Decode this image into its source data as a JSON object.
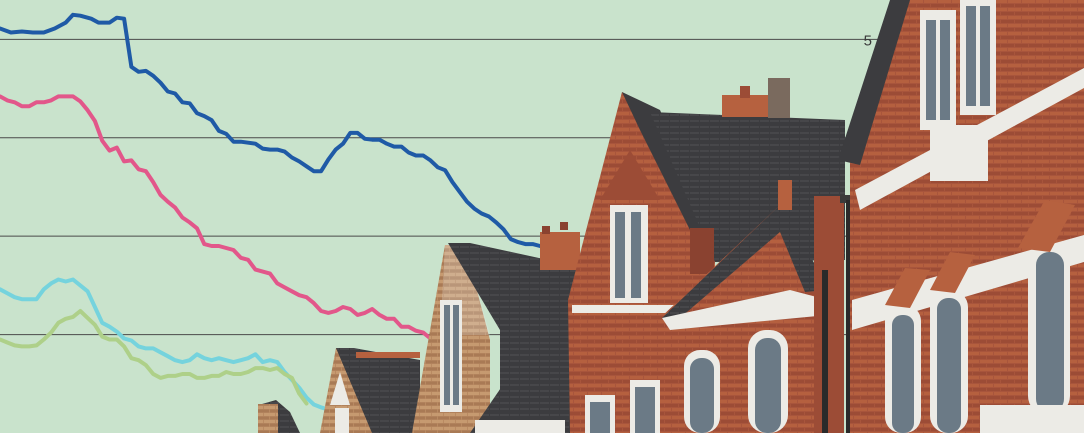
{
  "chart_data": {
    "type": "line",
    "title": "",
    "xlabel": "",
    "ylabel": "",
    "ylim": [
      1,
      5.4
    ],
    "grid": true,
    "y_ticks": [
      2,
      3,
      4,
      5
    ],
    "y_tick_labels": [
      {
        "value": 5,
        "label": "5"
      }
    ],
    "series": [
      {
        "color": "#1f5aa6",
        "points": [
          [
            0,
            5.11
          ],
          [
            3,
            5.07
          ],
          [
            6,
            5.08
          ],
          [
            9,
            5.07
          ],
          [
            12,
            5.07
          ],
          [
            15,
            5.11
          ],
          [
            18,
            5.17
          ],
          [
            20,
            5.25
          ],
          [
            22,
            5.24
          ],
          [
            25,
            5.21
          ],
          [
            27,
            5.17
          ],
          [
            30,
            5.17
          ],
          [
            32,
            5.22
          ],
          [
            34,
            5.21
          ],
          [
            36,
            4.72
          ],
          [
            38,
            4.67
          ],
          [
            40,
            4.68
          ],
          [
            42,
            4.63
          ],
          [
            44,
            4.56
          ],
          [
            46,
            4.47
          ],
          [
            48,
            4.45
          ],
          [
            50,
            4.36
          ],
          [
            52,
            4.35
          ],
          [
            54,
            4.25
          ],
          [
            56,
            4.22
          ],
          [
            58,
            4.18
          ],
          [
            60,
            4.07
          ],
          [
            62,
            4.04
          ],
          [
            64,
            3.96
          ],
          [
            66,
            3.96
          ],
          [
            68,
            3.95
          ],
          [
            70,
            3.94
          ],
          [
            72,
            3.89
          ],
          [
            74,
            3.88
          ],
          [
            76,
            3.88
          ],
          [
            78,
            3.86
          ],
          [
            80,
            3.8
          ],
          [
            82,
            3.76
          ],
          [
            84,
            3.71
          ],
          [
            86,
            3.66
          ],
          [
            88,
            3.66
          ],
          [
            90,
            3.78
          ],
          [
            92,
            3.88
          ],
          [
            94,
            3.94
          ],
          [
            96,
            4.05
          ],
          [
            98,
            4.05
          ],
          [
            100,
            3.99
          ],
          [
            102,
            3.98
          ],
          [
            104,
            3.98
          ],
          [
            106,
            3.94
          ],
          [
            108,
            3.91
          ],
          [
            110,
            3.91
          ],
          [
            112,
            3.85
          ],
          [
            114,
            3.82
          ],
          [
            116,
            3.82
          ],
          [
            118,
            3.77
          ],
          [
            120,
            3.7
          ],
          [
            122,
            3.67
          ],
          [
            124,
            3.55
          ],
          [
            126,
            3.45
          ],
          [
            128,
            3.35
          ],
          [
            130,
            3.28
          ],
          [
            132,
            3.23
          ],
          [
            134,
            3.2
          ],
          [
            136,
            3.14
          ],
          [
            138,
            3.07
          ],
          [
            140,
            2.97
          ],
          [
            142,
            2.94
          ],
          [
            144,
            2.92
          ],
          [
            146,
            2.92
          ],
          [
            148,
            2.9
          ]
        ]
      },
      {
        "color": "#e2578a",
        "points": [
          [
            0,
            4.42
          ],
          [
            2,
            4.38
          ],
          [
            4,
            4.36
          ],
          [
            6,
            4.32
          ],
          [
            8,
            4.32
          ],
          [
            10,
            4.36
          ],
          [
            12,
            4.36
          ],
          [
            14,
            4.38
          ],
          [
            16,
            4.42
          ],
          [
            18,
            4.42
          ],
          [
            20,
            4.42
          ],
          [
            22,
            4.37
          ],
          [
            24,
            4.28
          ],
          [
            26,
            4.17
          ],
          [
            28,
            3.97
          ],
          [
            30,
            3.87
          ],
          [
            32,
            3.9
          ],
          [
            34,
            3.76
          ],
          [
            36,
            3.77
          ],
          [
            38,
            3.68
          ],
          [
            40,
            3.66
          ],
          [
            42,
            3.55
          ],
          [
            44,
            3.42
          ],
          [
            46,
            3.35
          ],
          [
            48,
            3.29
          ],
          [
            50,
            3.19
          ],
          [
            52,
            3.14
          ],
          [
            54,
            3.08
          ],
          [
            56,
            2.92
          ],
          [
            58,
            2.9
          ],
          [
            60,
            2.9
          ],
          [
            62,
            2.88
          ],
          [
            64,
            2.86
          ],
          [
            66,
            2.78
          ],
          [
            68,
            2.76
          ],
          [
            70,
            2.66
          ],
          [
            72,
            2.64
          ],
          [
            74,
            2.62
          ],
          [
            76,
            2.52
          ],
          [
            78,
            2.48
          ],
          [
            80,
            2.44
          ],
          [
            82,
            2.4
          ],
          [
            84,
            2.38
          ],
          [
            86,
            2.32
          ],
          [
            88,
            2.24
          ],
          [
            90,
            2.22
          ],
          [
            92,
            2.24
          ],
          [
            94,
            2.28
          ],
          [
            96,
            2.26
          ],
          [
            98,
            2.2
          ],
          [
            100,
            2.22
          ],
          [
            102,
            2.26
          ],
          [
            104,
            2.2
          ],
          [
            106,
            2.16
          ],
          [
            108,
            2.16
          ],
          [
            110,
            2.08
          ],
          [
            112,
            2.08
          ],
          [
            114,
            2.04
          ],
          [
            116,
            2.02
          ],
          [
            118,
            1.96
          ],
          [
            120,
            1.92
          ]
        ]
      },
      {
        "color": "#75d3dd",
        "points": [
          [
            0,
            2.46
          ],
          [
            2,
            2.42
          ],
          [
            4,
            2.38
          ],
          [
            6,
            2.36
          ],
          [
            8,
            2.36
          ],
          [
            10,
            2.36
          ],
          [
            12,
            2.46
          ],
          [
            14,
            2.52
          ],
          [
            16,
            2.56
          ],
          [
            18,
            2.54
          ],
          [
            20,
            2.56
          ],
          [
            22,
            2.5
          ],
          [
            24,
            2.44
          ],
          [
            26,
            2.28
          ],
          [
            28,
            2.12
          ],
          [
            30,
            2.08
          ],
          [
            32,
            2.03
          ],
          [
            34,
            1.96
          ],
          [
            36,
            1.94
          ],
          [
            38,
            1.88
          ],
          [
            40,
            1.86
          ],
          [
            42,
            1.86
          ],
          [
            44,
            1.82
          ],
          [
            46,
            1.78
          ],
          [
            48,
            1.74
          ],
          [
            50,
            1.72
          ],
          [
            52,
            1.74
          ],
          [
            54,
            1.8
          ],
          [
            56,
            1.76
          ],
          [
            58,
            1.74
          ],
          [
            60,
            1.76
          ],
          [
            62,
            1.74
          ],
          [
            64,
            1.72
          ],
          [
            66,
            1.74
          ],
          [
            68,
            1.76
          ],
          [
            70,
            1.8
          ],
          [
            72,
            1.72
          ],
          [
            74,
            1.74
          ],
          [
            76,
            1.72
          ],
          [
            78,
            1.62
          ],
          [
            80,
            1.54
          ],
          [
            82,
            1.46
          ],
          [
            84,
            1.36
          ],
          [
            86,
            1.29
          ],
          [
            88,
            1.26
          ],
          [
            90,
            1.24
          ]
        ]
      },
      {
        "color": "#aed089",
        "points": [
          [
            0,
            1.95
          ],
          [
            2,
            1.92
          ],
          [
            4,
            1.89
          ],
          [
            6,
            1.88
          ],
          [
            8,
            1.88
          ],
          [
            10,
            1.89
          ],
          [
            12,
            1.95
          ],
          [
            14,
            2.02
          ],
          [
            16,
            2.12
          ],
          [
            18,
            2.16
          ],
          [
            20,
            2.18
          ],
          [
            22,
            2.24
          ],
          [
            24,
            2.17
          ],
          [
            26,
            2.1
          ],
          [
            28,
            1.98
          ],
          [
            30,
            1.95
          ],
          [
            32,
            1.95
          ],
          [
            34,
            1.88
          ],
          [
            36,
            1.76
          ],
          [
            38,
            1.74
          ],
          [
            40,
            1.69
          ],
          [
            42,
            1.6
          ],
          [
            44,
            1.56
          ],
          [
            46,
            1.58
          ],
          [
            48,
            1.58
          ],
          [
            50,
            1.6
          ],
          [
            52,
            1.6
          ],
          [
            54,
            1.56
          ],
          [
            56,
            1.56
          ],
          [
            58,
            1.58
          ],
          [
            60,
            1.58
          ],
          [
            62,
            1.62
          ],
          [
            64,
            1.6
          ],
          [
            66,
            1.6
          ],
          [
            68,
            1.62
          ],
          [
            70,
            1.66
          ],
          [
            72,
            1.66
          ],
          [
            74,
            1.64
          ],
          [
            76,
            1.66
          ],
          [
            78,
            1.6
          ],
          [
            80,
            1.56
          ],
          [
            82,
            1.4
          ],
          [
            84,
            1.3
          ]
        ]
      }
    ]
  },
  "photo": {
    "subject": "terraced-brick-houses-rooftops",
    "colors": {
      "brick": "#a8553c",
      "brick_dark": "#8a4230",
      "roof": "#3b3b3d",
      "trim": "#ecebe6",
      "window": "#6b7a86",
      "chimney": "#b6613f",
      "sky_bg": "#c9e3cc",
      "grid": "#4a4a4a"
    }
  }
}
